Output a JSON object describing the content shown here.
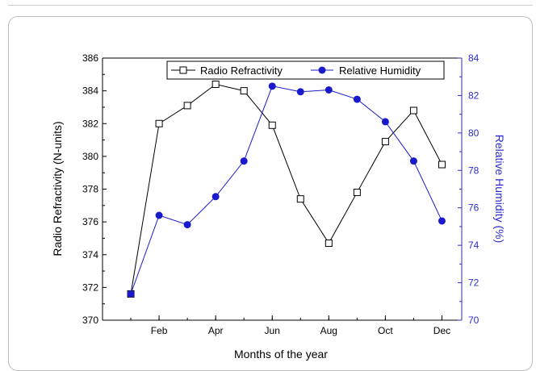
{
  "chart_data": {
    "type": "line",
    "xlabel": "Months of the year",
    "ylabel": "Radio Refractivity (N-units)",
    "y2label": "Relative Humidity (%)",
    "x": [
      1,
      2,
      3,
      4,
      5,
      6,
      7,
      8,
      9,
      10,
      11,
      12
    ],
    "xlim": [
      0,
      12.7
    ],
    "xticks": [
      2,
      4,
      6,
      8,
      10,
      12
    ],
    "xticklabels": [
      "Feb",
      "Apr",
      "Jun",
      "Aug",
      "Oct",
      "Dec"
    ],
    "ylim": [
      370,
      386
    ],
    "yticks": [
      370,
      372,
      374,
      376,
      378,
      380,
      382,
      384,
      386
    ],
    "y2lim": [
      70,
      84
    ],
    "y2ticks": [
      70,
      72,
      74,
      76,
      78,
      80,
      82,
      84
    ],
    "legend_position": "top-right",
    "series": [
      {
        "name": "Radio Refractivity",
        "axis": "left",
        "marker": "open-square",
        "color": "#000000",
        "values": [
          371.6,
          382.0,
          383.1,
          384.4,
          384.0,
          381.9,
          377.4,
          374.7,
          377.8,
          380.9,
          382.8,
          379.5
        ]
      },
      {
        "name": "Relative Humidity",
        "axis": "right",
        "marker": "filled-circle",
        "color": "#1a1acc",
        "values": [
          71.4,
          75.6,
          75.1,
          76.6,
          78.5,
          82.5,
          82.2,
          82.3,
          81.8,
          80.6,
          78.5,
          75.3
        ]
      }
    ]
  }
}
